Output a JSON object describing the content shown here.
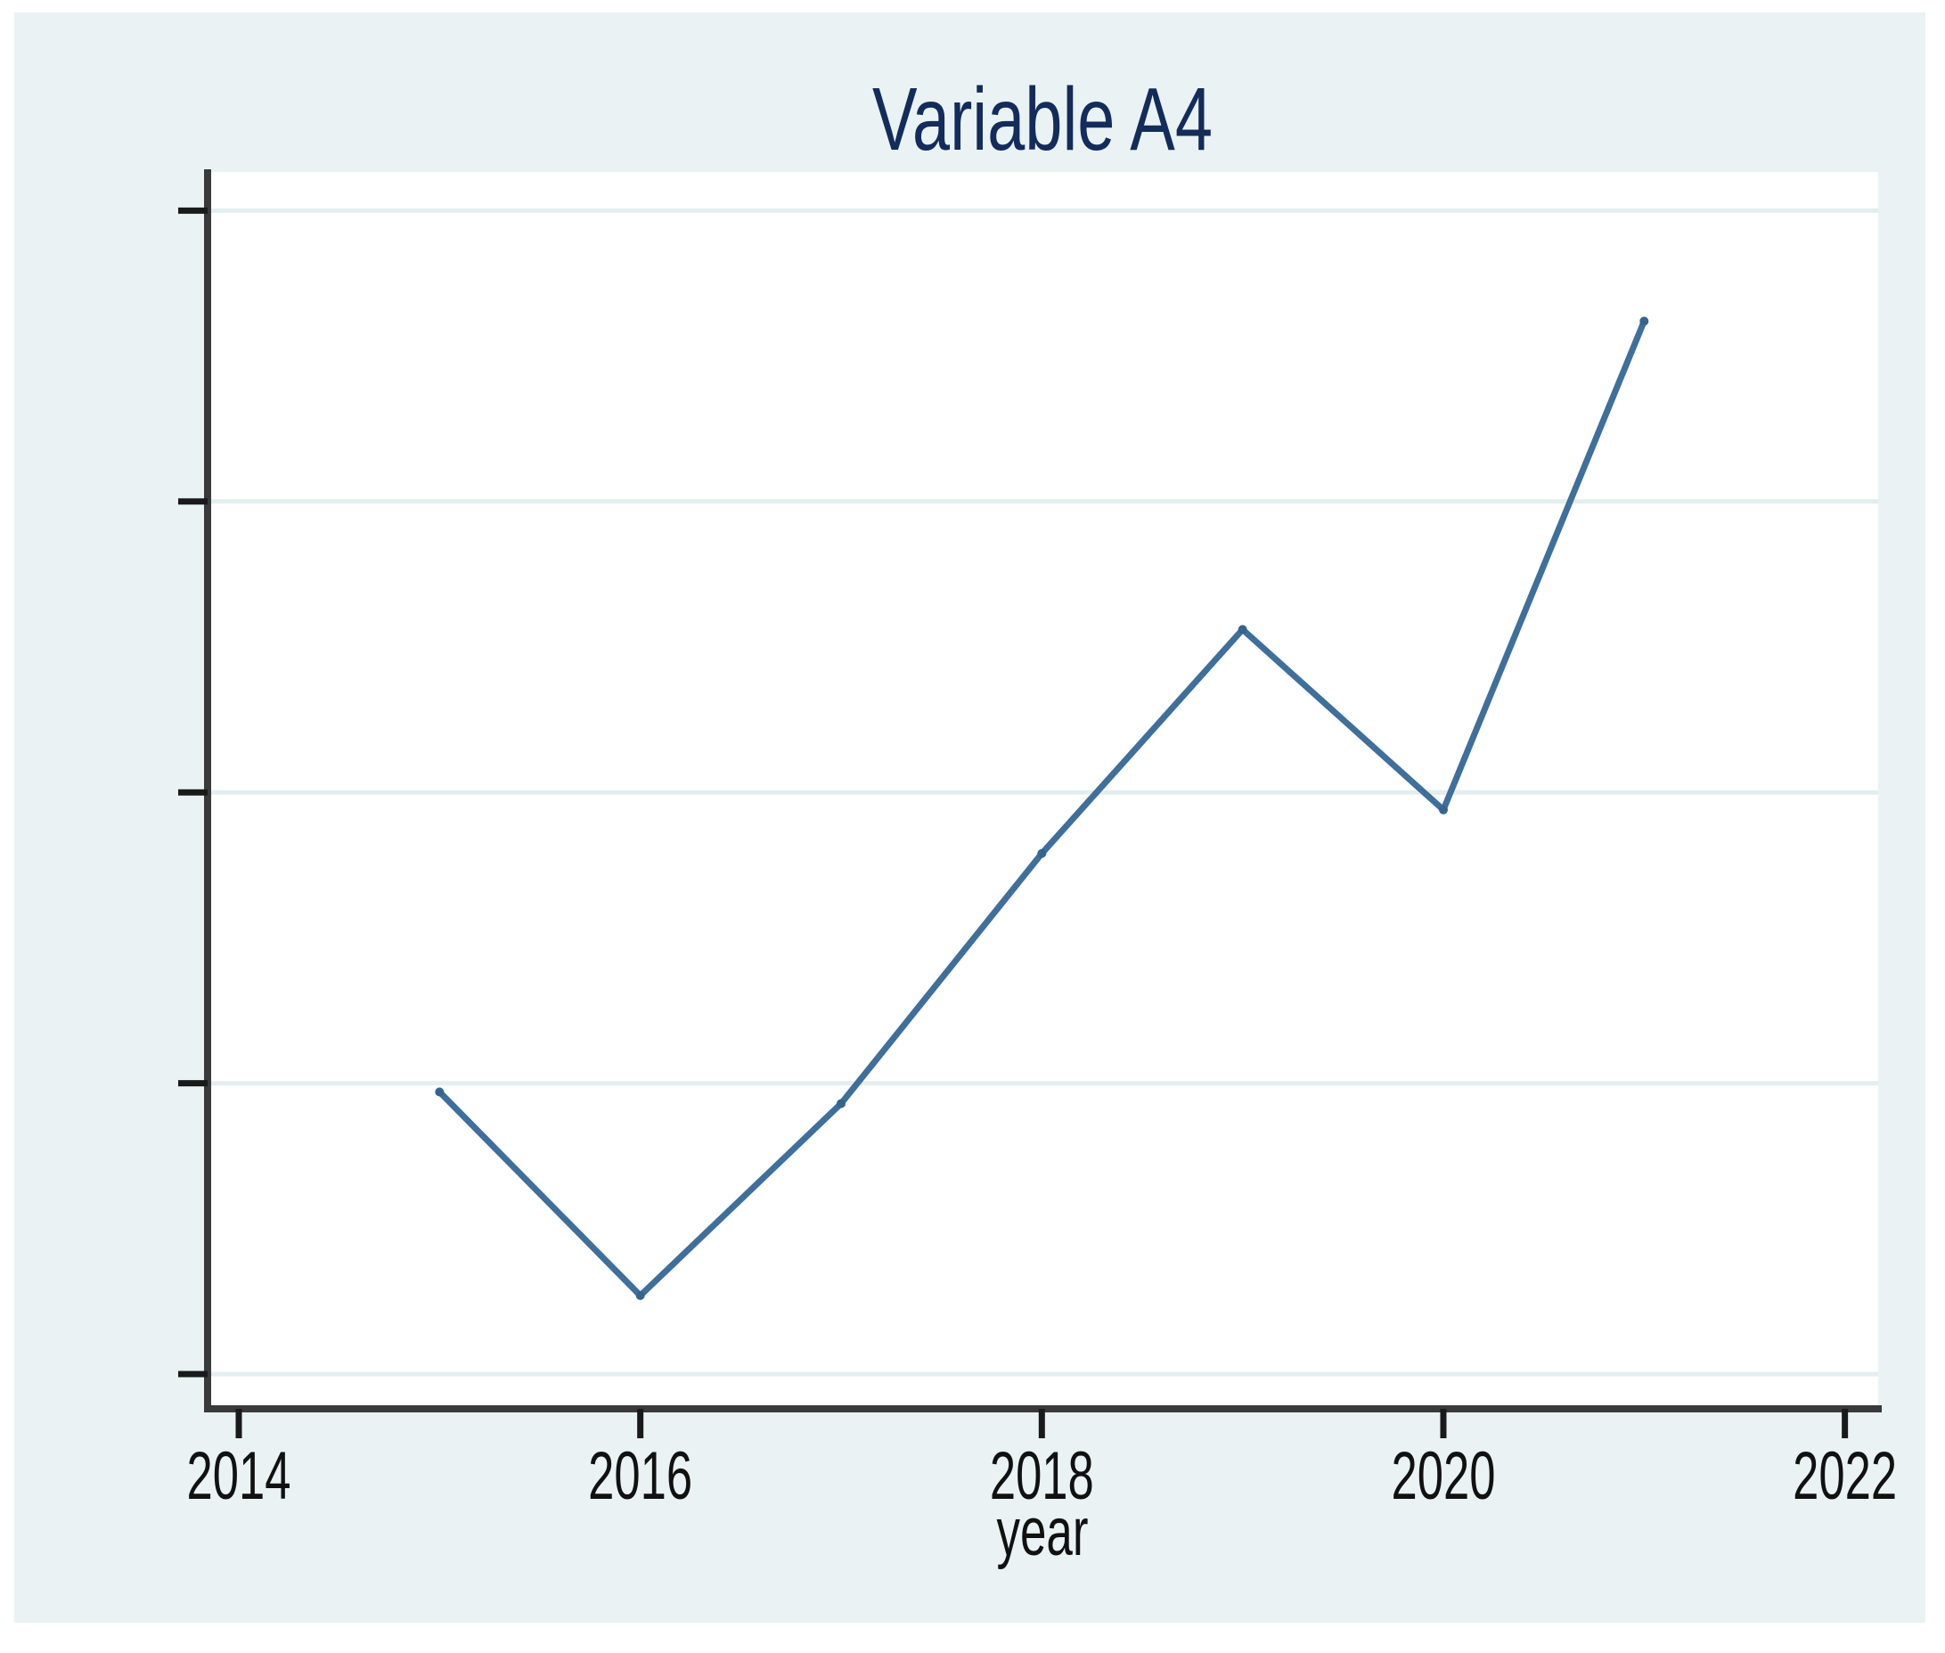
{
  "chart_data": {
    "type": "line",
    "title": "Variable A4",
    "xlabel": "year",
    "ylabel": "",
    "legend": "none",
    "grid": "horizontal-only",
    "x_range_years": [
      2014,
      2022
    ],
    "x_tick_labels": [
      "2014",
      "2016",
      "2018",
      "2020",
      "2022"
    ],
    "x_tick_years": [
      2014,
      2016,
      2018,
      2020,
      2022
    ],
    "y_axis": {
      "tick_labels": "unlabeled",
      "tick_count": 5,
      "tick_gridline_units": [
        1,
        2,
        3,
        4,
        5
      ]
    },
    "series": [
      {
        "name": "Variable A4",
        "x": [
          2015,
          2016,
          2017,
          2018,
          2019,
          2020,
          2021
        ],
        "y_gridline_units": [
          1.97,
          1.27,
          1.93,
          2.79,
          3.56,
          2.94,
          4.62
        ]
      }
    ],
    "colors": {
      "line": "#3f6f9b",
      "marker": "#35648f",
      "title": "#132c5c",
      "axis": "#3a3a3a",
      "tick": "#1a1a1a",
      "tick_label": "#111111",
      "gridline": "#e4eef1",
      "plot_bg": "#ffffff",
      "outer_bg": "#eaf2f3",
      "frame_bg": "#ffffff"
    }
  }
}
